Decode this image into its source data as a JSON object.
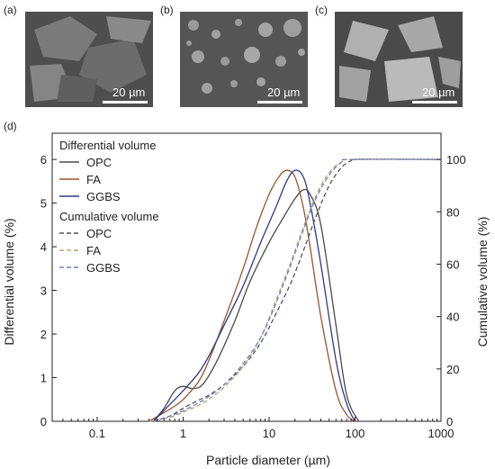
{
  "panels": {
    "a": {
      "label": "(a)",
      "scale": "20 µm"
    },
    "b": {
      "label": "(b)",
      "scale": "20 µm"
    },
    "c": {
      "label": "(c)",
      "scale": "20 µm"
    },
    "d": {
      "label": "(d)"
    }
  },
  "colors": {
    "OPC": "#4a4a4a",
    "FA": "#a0522d",
    "GGBS": "#2b3a8c",
    "OPC_cum": "#555555",
    "FA_cum": "#b8a47a",
    "GGBS_cum": "#6f7fc4"
  },
  "chart_data": {
    "type": "line",
    "xlabel": "Particle diameter (µm)",
    "ylabel_left": "Differential volume (%)",
    "ylabel_right": "Cumulative volume (%)",
    "xscale": "log",
    "xlim": [
      0.03,
      1000
    ],
    "ylim_left": [
      0,
      6.6
    ],
    "ylim_right": [
      0,
      110
    ],
    "x_ticks": [
      0.1,
      1,
      10,
      100,
      1000
    ],
    "x_tick_labels": [
      "0.1",
      "1",
      "10",
      "100",
      "1000"
    ],
    "y_left_ticks": [
      "0",
      "1",
      "2",
      "3",
      "4",
      "5",
      "6"
    ],
    "y_right_ticks": [
      "0",
      "20",
      "40",
      "60",
      "80",
      "100"
    ],
    "legend": {
      "differential_title": "Differential volume",
      "cumulative_title": "Cumulative volume",
      "position": "top-left"
    },
    "series": [
      {
        "name": "OPC",
        "group": "differential",
        "style": "solid",
        "x": [
          0.45,
          0.6,
          0.8,
          1.0,
          1.3,
          1.7,
          2.5,
          4,
          6,
          10,
          15,
          20,
          25,
          30,
          40,
          60,
          80,
          110
        ],
        "y": [
          0.0,
          0.3,
          0.7,
          0.8,
          0.75,
          0.85,
          1.4,
          2.3,
          3.2,
          4.1,
          4.7,
          5.1,
          5.3,
          5.2,
          4.5,
          2.2,
          0.6,
          0.0
        ]
      },
      {
        "name": "FA",
        "group": "differential",
        "style": "solid",
        "x": [
          0.4,
          0.6,
          0.8,
          1.0,
          1.5,
          2,
          3,
          5,
          7,
          10,
          13,
          16,
          20,
          25,
          30,
          40,
          60,
          80,
          100
        ],
        "y": [
          0.0,
          0.2,
          0.35,
          0.5,
          0.9,
          1.4,
          2.3,
          3.5,
          4.4,
          5.2,
          5.6,
          5.75,
          5.6,
          4.9,
          4.0,
          2.4,
          0.7,
          0.15,
          0.0
        ]
      },
      {
        "name": "GGBS",
        "group": "differential",
        "style": "solid",
        "x": [
          0.45,
          0.6,
          0.8,
          1.0,
          1.5,
          2,
          3,
          5,
          8,
          12,
          16,
          20,
          25,
          30,
          40,
          60,
          80,
          100
        ],
        "y": [
          0.0,
          0.25,
          0.5,
          0.7,
          1.1,
          1.5,
          2.2,
          3.1,
          4.1,
          4.9,
          5.5,
          5.75,
          5.6,
          5.0,
          3.6,
          1.4,
          0.4,
          0.0
        ]
      },
      {
        "name": "OPC",
        "group": "cumulative",
        "style": "dashed",
        "x": [
          0.45,
          0.7,
          1,
          1.5,
          2,
          3,
          5,
          8,
          12,
          18,
          25,
          35,
          50,
          70,
          90,
          110,
          1000
        ],
        "y": [
          0,
          2,
          5,
          8,
          10,
          14,
          21,
          30,
          41,
          53,
          65,
          78,
          90,
          97,
          99.5,
          100,
          100
        ]
      },
      {
        "name": "FA",
        "group": "cumulative",
        "style": "dashed",
        "x": [
          0.4,
          0.7,
          1,
          1.5,
          2,
          3,
          5,
          8,
          12,
          18,
          25,
          35,
          50,
          70,
          90,
          1000
        ],
        "y": [
          0,
          1.5,
          3.5,
          6,
          8.5,
          13,
          21,
          32,
          46,
          61,
          74,
          86,
          95,
          99,
          100,
          100
        ]
      },
      {
        "name": "GGBS",
        "group": "cumulative",
        "style": "dashed",
        "x": [
          0.45,
          0.7,
          1,
          1.5,
          2,
          3,
          5,
          8,
          12,
          18,
          25,
          35,
          50,
          70,
          90,
          1000
        ],
        "y": [
          0,
          2,
          4,
          7,
          9.5,
          14,
          22,
          32,
          45,
          60,
          73,
          85,
          94,
          99,
          100,
          100
        ]
      }
    ]
  }
}
